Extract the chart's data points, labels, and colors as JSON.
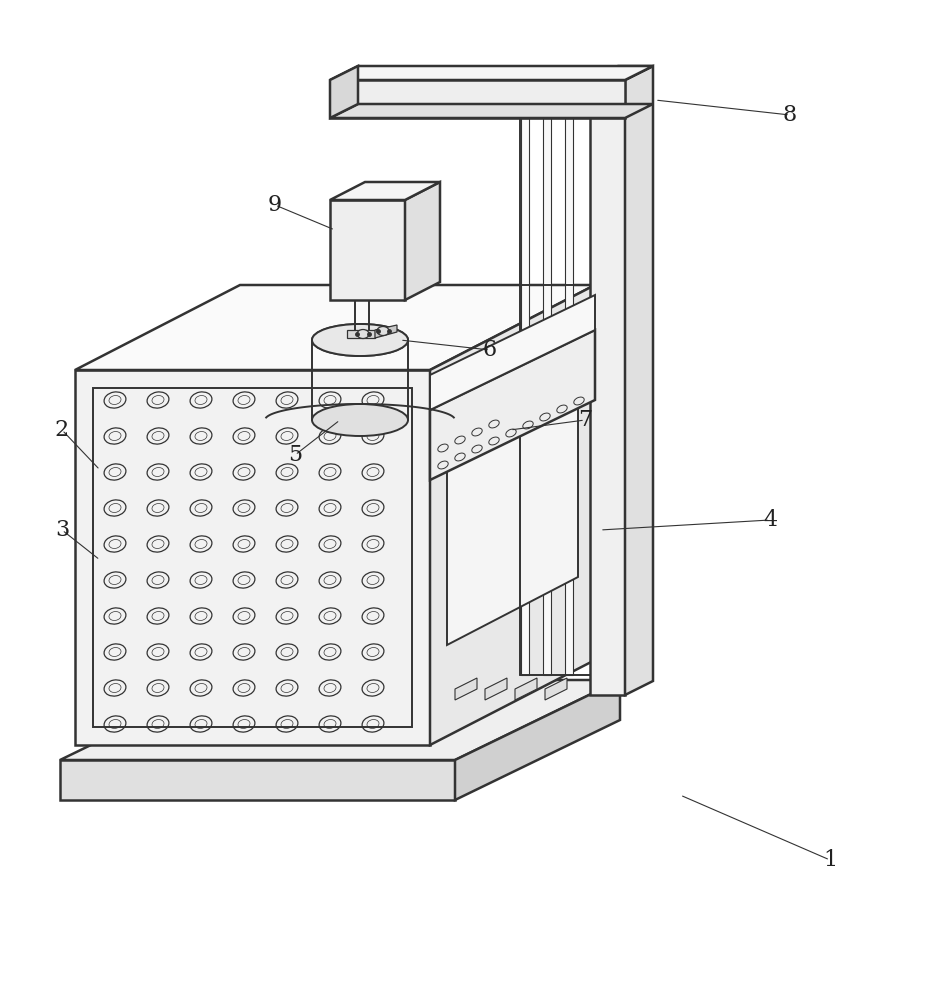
{
  "bg_color": "#ffffff",
  "lc": "#333333",
  "lw": 1.4,
  "lw2": 1.8,
  "fill_top": "#f8f8f8",
  "fill_front": "#f0f0f0",
  "fill_right": "#e0e0e0",
  "fill_base": "#e8e8e8"
}
